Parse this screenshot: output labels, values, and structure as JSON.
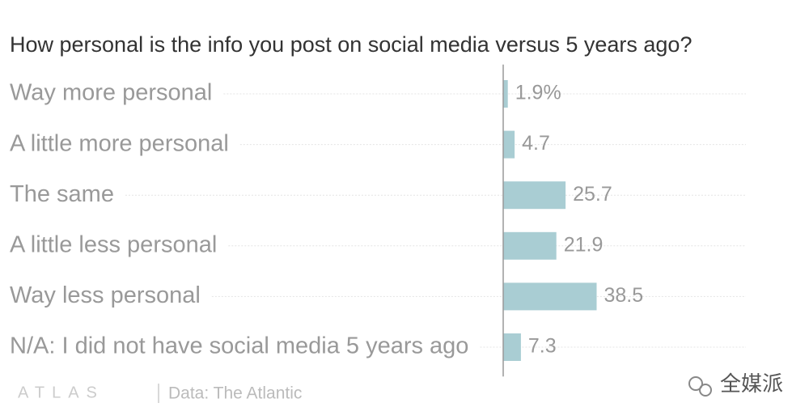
{
  "chart_data": {
    "type": "bar",
    "orientation": "horizontal",
    "title": "How personal is the info you post on social media versus 5 years ago?",
    "categories": [
      "Way more personal",
      "A little more personal",
      "The same",
      "A little less personal",
      "Way less personal",
      "N/A: I did not have social media 5 years ago"
    ],
    "values": [
      1.9,
      4.7,
      25.7,
      21.9,
      38.5,
      7.3
    ],
    "value_labels": [
      "1.9%",
      "4.7",
      "25.7",
      "21.9",
      "38.5",
      "7.3"
    ],
    "color": "#a9cdd3",
    "xlim": [
      0,
      100
    ],
    "logo": "ATLAS",
    "source": "Data: The Atlantic",
    "watermark": "全媒派"
  }
}
